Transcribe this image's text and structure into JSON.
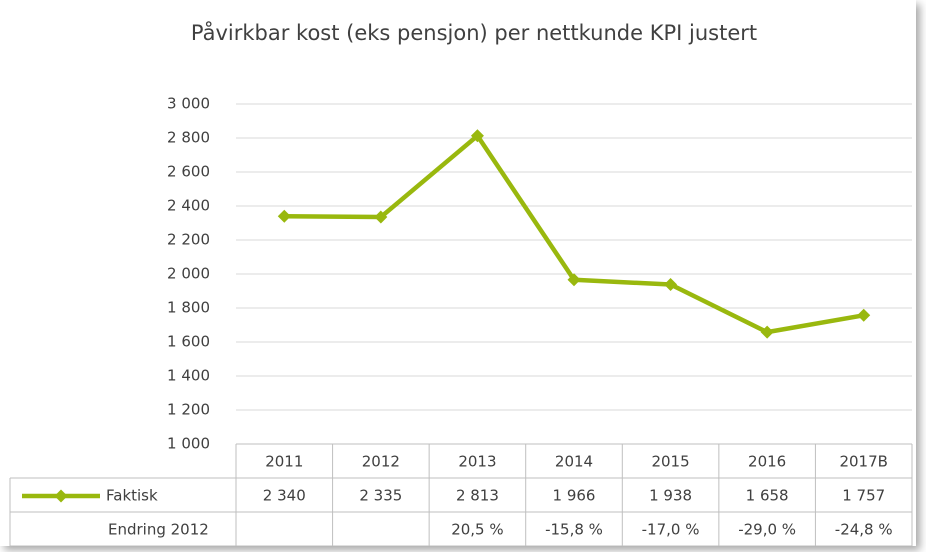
{
  "chart_data": {
    "type": "line",
    "title": "Påvirkbar kost (eks pensjon) per nettkunde KPI justert",
    "categories": [
      "2011",
      "2012",
      "2013",
      "2014",
      "2015",
      "2016",
      "2017B"
    ],
    "series": [
      {
        "name": "Faktisk",
        "color": "#99b80e",
        "values": [
          2340,
          2335,
          2813,
          1966,
          1938,
          1658,
          1757
        ],
        "value_labels": [
          "2 340",
          "2 335",
          "2 813",
          "1 966",
          "1 938",
          "1 658",
          "1 757"
        ]
      }
    ],
    "table_rows": [
      {
        "name": "Endring 2012",
        "values": [
          null,
          null,
          20.5,
          -15.8,
          -17.0,
          -29.0,
          -24.8
        ],
        "value_labels": [
          null,
          null,
          "20,5 %",
          "-15,8 %",
          "-17,0 %",
          "-29,0 %",
          "-24,8 %"
        ]
      }
    ],
    "ylim": [
      1000,
      3000
    ],
    "yticks": [
      {
        "value": 1000,
        "label": "1 000"
      },
      {
        "value": 1200,
        "label": "1 200"
      },
      {
        "value": 1400,
        "label": "1 400"
      },
      {
        "value": 1600,
        "label": "1 600"
      },
      {
        "value": 1800,
        "label": "1 800"
      },
      {
        "value": 2000,
        "label": "2 000"
      },
      {
        "value": 2200,
        "label": "2 200"
      },
      {
        "value": 2400,
        "label": "2 400"
      },
      {
        "value": 2600,
        "label": "2 600"
      },
      {
        "value": 2800,
        "label": "2 800"
      },
      {
        "value": 3000,
        "label": "3 000"
      }
    ],
    "grid": true
  }
}
